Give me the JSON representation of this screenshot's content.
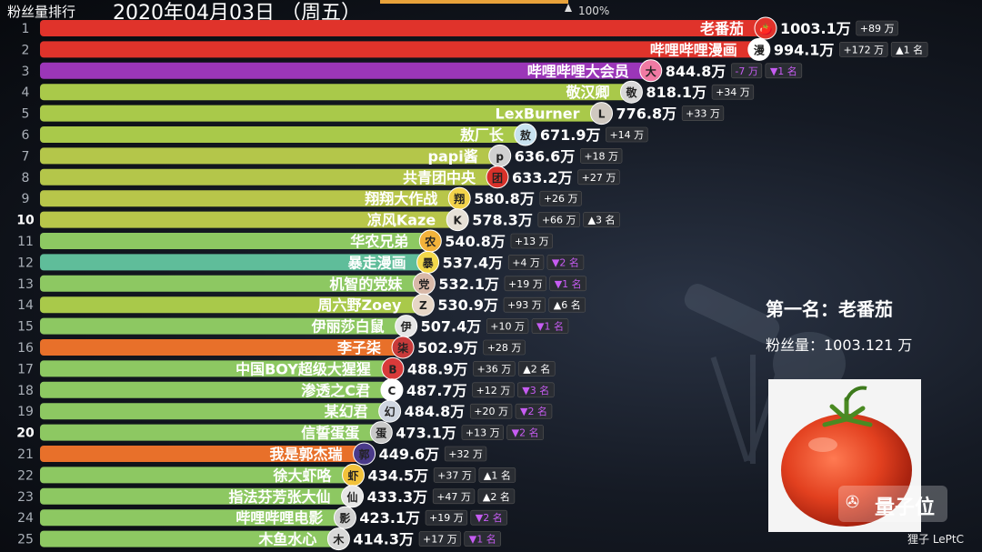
{
  "header": {
    "title": "粉丝量排行",
    "date": "2020年04月03日 （周五）",
    "progress_label": "100%",
    "progress_value": 1.0
  },
  "leader": {
    "title": "第一名：老番茄",
    "count": "粉丝量：1003.121 万"
  },
  "watermark": {
    "text": "量子位",
    "credit": "狸子 LePtC"
  },
  "chart_data": {
    "type": "bar",
    "orientation": "horizontal",
    "unit": "万",
    "xlim": [
      0,
      1003.1
    ],
    "highlight_ranks": [
      10,
      20
    ],
    "bars": [
      {
        "rank": "1",
        "name": "老番茄",
        "value": 1003.1,
        "value_label": "1003.1万",
        "delta": "+89 万",
        "rank_change": "",
        "color": "#e0332b",
        "avatar": "🍅",
        "avatar_bg": "#e0332b"
      },
      {
        "rank": "2",
        "name": "哔哩哔哩漫画",
        "value": 994.1,
        "value_label": "994.1万",
        "delta": "+172 万",
        "rank_change": "▲1 名",
        "color": "#e0332b",
        "avatar": "漫",
        "avatar_bg": "#ffffff"
      },
      {
        "rank": "3",
        "name": "哔哩哔哩大会员",
        "value": 844.8,
        "value_label": "844.8万",
        "delta": "-7 万",
        "rank_change": "▼1 名",
        "color": "#9b36b8",
        "avatar": "大",
        "avatar_bg": "#f07aa3"
      },
      {
        "rank": "4",
        "name": "敬汉卿",
        "value": 818.1,
        "value_label": "818.1万",
        "delta": "+34 万",
        "rank_change": "",
        "color": "#a9c94a",
        "avatar": "敬",
        "avatar_bg": "#d8d8d8"
      },
      {
        "rank": "5",
        "name": "LexBurner",
        "value": 776.8,
        "value_label": "776.8万",
        "delta": "+33 万",
        "rank_change": "",
        "color": "#a9c94a",
        "avatar": "L",
        "avatar_bg": "#cfc8c0"
      },
      {
        "rank": "6",
        "name": "敖厂长",
        "value": 671.9,
        "value_label": "671.9万",
        "delta": "+14 万",
        "rank_change": "",
        "color": "#a9c94a",
        "avatar": "敖",
        "avatar_bg": "#c8e2f0"
      },
      {
        "rank": "7",
        "name": "papi酱",
        "value": 636.6,
        "value_label": "636.6万",
        "delta": "+18 万",
        "rank_change": "",
        "color": "#b4c64a",
        "avatar": "p",
        "avatar_bg": "#d0d0d0"
      },
      {
        "rank": "8",
        "name": "共青团中央",
        "value": 633.2,
        "value_label": "633.2万",
        "delta": "+27 万",
        "rank_change": "",
        "color": "#b4c64a",
        "avatar": "团",
        "avatar_bg": "#d8312a"
      },
      {
        "rank": "9",
        "name": "翔翔大作战",
        "value": 580.8,
        "value_label": "580.8万",
        "delta": "+26 万",
        "rank_change": "",
        "color": "#b8c64a",
        "avatar": "翔",
        "avatar_bg": "#f2d24a"
      },
      {
        "rank": "10",
        "name": "凉风Kaze",
        "value": 578.3,
        "value_label": "578.3万",
        "delta": "+66 万",
        "rank_change": "▲3 名",
        "color": "#b8c64a",
        "avatar": "K",
        "avatar_bg": "#e6e0d6"
      },
      {
        "rank": "11",
        "name": "华农兄弟",
        "value": 540.8,
        "value_label": "540.8万",
        "delta": "+13 万",
        "rank_change": "",
        "color": "#8dc862",
        "avatar": "农",
        "avatar_bg": "#f2b23a"
      },
      {
        "rank": "12",
        "name": "暴走漫画",
        "value": 537.4,
        "value_label": "537.4万",
        "delta": "+4 万",
        "rank_change": "▼2 名",
        "color": "#5fbd9a",
        "avatar": "暴",
        "avatar_bg": "#f2d84a"
      },
      {
        "rank": "13",
        "name": "机智的党妹",
        "value": 532.1,
        "value_label": "532.1万",
        "delta": "+19 万",
        "rank_change": "▼1 名",
        "color": "#8dc862",
        "avatar": "党",
        "avatar_bg": "#d8b8a8"
      },
      {
        "rank": "14",
        "name": "周六野Zoey",
        "value": 530.9,
        "value_label": "530.9万",
        "delta": "+93 万",
        "rank_change": "▲6 名",
        "color": "#a9c94a",
        "avatar": "Z",
        "avatar_bg": "#e6d6c6"
      },
      {
        "rank": "15",
        "name": "伊丽莎白鼠",
        "value": 507.4,
        "value_label": "507.4万",
        "delta": "+10 万",
        "rank_change": "▼1 名",
        "color": "#8dc862",
        "avatar": "伊",
        "avatar_bg": "#e6e6e6"
      },
      {
        "rank": "16",
        "name": "李子柒",
        "value": 502.9,
        "value_label": "502.9万",
        "delta": "+28 万",
        "rank_change": "",
        "color": "#e8702a",
        "avatar": "柒",
        "avatar_bg": "#c83a3a"
      },
      {
        "rank": "17",
        "name": "中国BOY超级大猩猩",
        "value": 488.9,
        "value_label": "488.9万",
        "delta": "+36 万",
        "rank_change": "▲2 名",
        "color": "#8dc862",
        "avatar": "B",
        "avatar_bg": "#d83a3a"
      },
      {
        "rank": "18",
        "name": "渗透之C君",
        "value": 487.7,
        "value_label": "487.7万",
        "delta": "+12 万",
        "rank_change": "▼3 名",
        "color": "#8dc862",
        "avatar": "C",
        "avatar_bg": "#ffffff"
      },
      {
        "rank": "19",
        "name": "某幻君",
        "value": 484.8,
        "value_label": "484.8万",
        "delta": "+20 万",
        "rank_change": "▼2 名",
        "color": "#8dc862",
        "avatar": "幻",
        "avatar_bg": "#cfd6e0"
      },
      {
        "rank": "20",
        "name": "信誓蛋蛋",
        "value": 473.1,
        "value_label": "473.1万",
        "delta": "+13 万",
        "rank_change": "▼2 名",
        "color": "#8dc862",
        "avatar": "蛋",
        "avatar_bg": "#c8c8c8"
      },
      {
        "rank": "21",
        "name": "我是郭杰瑞",
        "value": 449.6,
        "value_label": "449.6万",
        "delta": "+32 万",
        "rank_change": "",
        "color": "#e8702a",
        "avatar": "郭",
        "avatar_bg": "#4a3a8a"
      },
      {
        "rank": "22",
        "name": "徐大虾咯",
        "value": 434.5,
        "value_label": "434.5万",
        "delta": "+37 万",
        "rank_change": "▲1 名",
        "color": "#8dc862",
        "avatar": "虾",
        "avatar_bg": "#f2c23a"
      },
      {
        "rank": "23",
        "name": "指法芬芳张大仙",
        "value": 433.3,
        "value_label": "433.3万",
        "delta": "+47 万",
        "rank_change": "▲2 名",
        "color": "#8dc862",
        "avatar": "仙",
        "avatar_bg": "#e6e6e6"
      },
      {
        "rank": "24",
        "name": "哔哩哔哩电影",
        "value": 423.1,
        "value_label": "423.1万",
        "delta": "+19 万",
        "rank_change": "▼2 名",
        "color": "#8dc862",
        "avatar": "影",
        "avatar_bg": "#d0d0d0"
      },
      {
        "rank": "25",
        "name": "木鱼水心",
        "value": 414.3,
        "value_label": "414.3万",
        "delta": "+17 万",
        "rank_change": "▼1 名",
        "color": "#8dc862",
        "avatar": "木",
        "avatar_bg": "#d8d8d8"
      }
    ]
  }
}
